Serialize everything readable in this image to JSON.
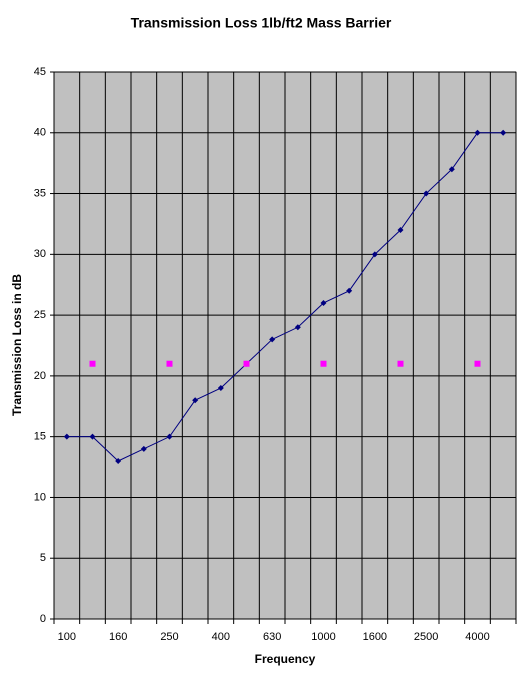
{
  "chart_data": {
    "type": "line",
    "title": "Transmission Loss  1lb/ft2 Mass Barrier",
    "x_label": "Frequency",
    "y_label": "Transmission Loss in dB",
    "categories": [
      "100",
      null,
      "160",
      null,
      "250",
      null,
      "400",
      null,
      "630",
      null,
      "1000",
      null,
      "1600",
      null,
      "2500",
      null,
      "4000",
      null
    ],
    "series": [
      {
        "color": "#000080",
        "marker": "diamond",
        "line": true,
        "values": [
          15,
          15,
          13,
          14,
          15,
          18,
          19,
          21,
          23,
          24,
          26,
          27,
          30,
          32,
          35,
          37,
          40,
          40
        ]
      },
      {
        "color": "#ff00ff",
        "marker": "square",
        "line": false,
        "values": [
          null,
          21,
          null,
          null,
          21,
          null,
          null,
          21,
          null,
          null,
          21,
          null,
          null,
          21,
          null,
          null,
          21,
          null
        ]
      }
    ],
    "ylim": [
      0,
      45
    ],
    "yticks": [
      0,
      5,
      10,
      15,
      20,
      25,
      30,
      35,
      40,
      45
    ],
    "grid": true,
    "plot_background": "#c0c0c0"
  }
}
